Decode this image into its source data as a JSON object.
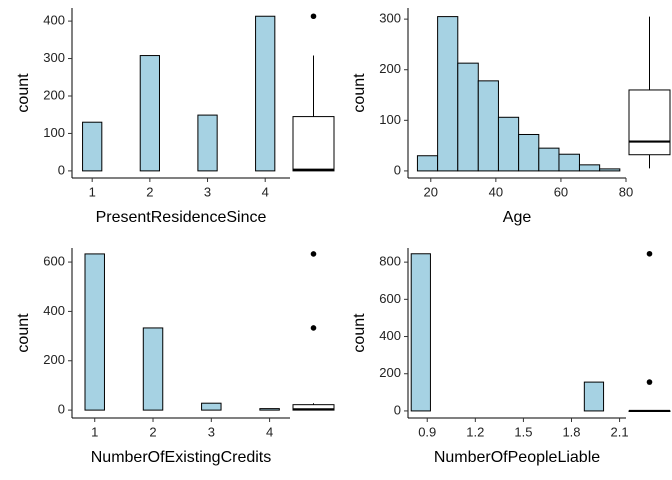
{
  "chart_data": [
    {
      "type": "histogram",
      "x_label": "PresentResidenceSince",
      "y_label": "count",
      "color": "#a6d2e3",
      "bins": [
        0.833,
        1.167,
        1.5,
        1.833,
        2.167,
        2.5,
        2.833,
        3.167,
        3.5,
        3.833,
        4.167
      ],
      "values": [
        130,
        0,
        0,
        308,
        0,
        0,
        149,
        0,
        0,
        413
      ],
      "xlim": [
        0.65,
        4.43
      ],
      "xticks": [
        1,
        2,
        3,
        4
      ],
      "ylim": [
        -19,
        435
      ],
      "yticks": [
        0,
        100,
        200,
        300,
        400
      ],
      "boxplot": {
        "whisker_low": 0,
        "q1": 0,
        "median": 3,
        "q3": 145,
        "whisker_high": 308,
        "outliers": [
          413
        ]
      }
    },
    {
      "type": "histogram",
      "x_label": "Age",
      "y_label": "count",
      "color": "#a6d2e3",
      "bins": [
        15.9,
        22.1,
        28.3,
        34.6,
        40.8,
        47,
        53.2,
        59.4,
        65.7,
        71.9,
        78.1
      ],
      "values": [
        30,
        305,
        213,
        178,
        106,
        72,
        45,
        33,
        12,
        4
      ],
      "xlim": [
        13,
        80
      ],
      "xticks": [
        20,
        40,
        60,
        80
      ],
      "ylim": [
        -14,
        322
      ],
      "yticks": [
        0,
        100,
        200,
        300
      ],
      "boxplot": {
        "whisker_low": 5,
        "q1": 32,
        "median": 58,
        "q3": 160,
        "whisker_high": 305,
        "outliers": []
      }
    },
    {
      "type": "histogram",
      "x_label": "NumberOfExistingCredits",
      "y_label": "count",
      "color": "#a6d2e3",
      "bins": [
        0.833,
        1.167,
        1.5,
        1.833,
        2.167,
        2.5,
        2.833,
        3.167,
        3.5,
        3.833,
        4.167
      ],
      "values": [
        633,
        0,
        0,
        333,
        0,
        0,
        28,
        0,
        0,
        6
      ],
      "xlim": [
        0.61,
        4.35
      ],
      "xticks": [
        1,
        2,
        3,
        4
      ],
      "ylim": [
        -32,
        657
      ],
      "yticks": [
        0,
        200,
        400,
        600
      ],
      "boxplot": {
        "whisker_low": 0,
        "q1": 0,
        "median": 3,
        "q3": 22,
        "whisker_high": 28,
        "outliers": [
          333,
          633
        ]
      }
    },
    {
      "type": "histogram",
      "x_label": "NumberOfPeopleLiable",
      "y_label": "count",
      "color": "#a6d2e3",
      "bins": [
        0.8,
        0.92,
        1.04,
        1.16,
        1.28,
        1.4,
        1.52,
        1.64,
        1.76,
        1.88,
        2.0
      ],
      "values": [
        845,
        0,
        0,
        0,
        0,
        0,
        0,
        0,
        0,
        155
      ],
      "xlim": [
        0.78,
        2.14
      ],
      "xticks": [
        0.9,
        1.2,
        1.5,
        1.8,
        2.1
      ],
      "ylim": [
        -38,
        876
      ],
      "yticks": [
        0,
        200,
        400,
        600,
        800
      ],
      "boxplot": {
        "whisker_low": 0,
        "q1": 0,
        "median": 0,
        "q3": 0,
        "whisker_high": 0,
        "outliers": [
          155,
          845
        ]
      }
    }
  ]
}
